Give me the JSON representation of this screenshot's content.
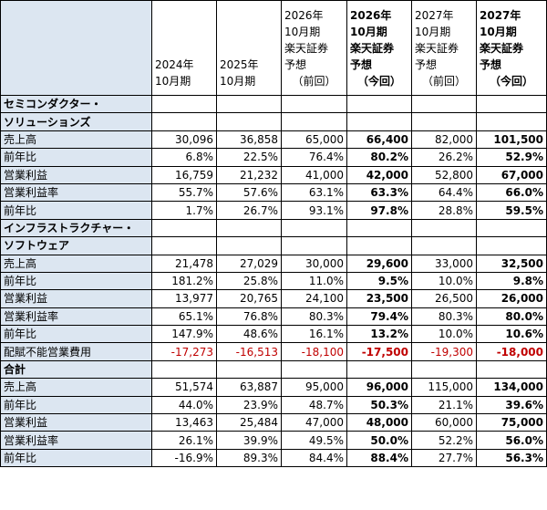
{
  "columns": [
    {
      "lines": [
        "2024年",
        "10月期"
      ],
      "bold": false,
      "paren": ""
    },
    {
      "lines": [
        "2025年",
        "10月期"
      ],
      "bold": false,
      "paren": ""
    },
    {
      "lines": [
        "2026年",
        "10月期",
        "楽天証券",
        "予想"
      ],
      "bold": false,
      "paren": "（前回）"
    },
    {
      "lines": [
        "2026年",
        "10月期",
        "楽天証券",
        "予想"
      ],
      "bold": true,
      "paren": "（今回）"
    },
    {
      "lines": [
        "2027年",
        "10月期",
        "楽天証券",
        "予想"
      ],
      "bold": false,
      "paren": "（前回）"
    },
    {
      "lines": [
        "2027年",
        "10月期",
        "楽天証券",
        "予想"
      ],
      "bold": true,
      "paren": "（今回）"
    }
  ],
  "sections": [
    {
      "name_lines": [
        "セミコンダクター・",
        "ソリューションズ"
      ],
      "groups": [
        [
          {
            "label": "売上高",
            "values": [
              "30,096",
              "36,858",
              "65,000",
              "66,400",
              "82,000",
              "101,500"
            ]
          },
          {
            "label": "前年比",
            "values": [
              "6.8%",
              "22.5%",
              "76.4%",
              "80.2%",
              "26.2%",
              "52.9%"
            ]
          }
        ],
        [
          {
            "label": "営業利益",
            "values": [
              "16,759",
              "21,232",
              "41,000",
              "42,000",
              "52,800",
              "67,000"
            ]
          },
          {
            "label": "営業利益率",
            "values": [
              "55.7%",
              "57.6%",
              "63.1%",
              "63.3%",
              "64.4%",
              "66.0%"
            ]
          },
          {
            "label": "前年比",
            "values": [
              "1.7%",
              "26.7%",
              "93.1%",
              "97.8%",
              "28.8%",
              "59.5%"
            ]
          }
        ]
      ]
    },
    {
      "name_lines": [
        "インフラストラクチャー・",
        "ソフトウェア"
      ],
      "groups": [
        [
          {
            "label": "売上高",
            "values": [
              "21,478",
              "27,029",
              "30,000",
              "29,600",
              "33,000",
              "32,500"
            ]
          },
          {
            "label": "前年比",
            "values": [
              "181.2%",
              "25.8%",
              "11.0%",
              "9.5%",
              "10.0%",
              "9.8%"
            ]
          }
        ],
        [
          {
            "label": "営業利益",
            "values": [
              "13,977",
              "20,765",
              "24,100",
              "23,500",
              "26,500",
              "26,000"
            ]
          },
          {
            "label": "営業利益率",
            "values": [
              "65.1%",
              "76.8%",
              "80.3%",
              "79.4%",
              "80.3%",
              "80.0%"
            ]
          },
          {
            "label": "前年比",
            "values": [
              "147.9%",
              "48.6%",
              "16.1%",
              "13.2%",
              "10.0%",
              "10.6%"
            ]
          }
        ]
      ]
    }
  ],
  "unallocated": {
    "label": "配賦不能営業費用",
    "values": [
      "-17,273",
      "-16,513",
      "-18,100",
      "-17,500",
      "-19,300",
      "-18,000"
    ]
  },
  "total": {
    "name_lines": [
      "合計"
    ],
    "groups": [
      [
        {
          "label": "売上高",
          "values": [
            "51,574",
            "63,887",
            "95,000",
            "96,000",
            "115,000",
            "134,000"
          ]
        },
        {
          "label": "前年比",
          "values": [
            "44.0%",
            "23.9%",
            "48.7%",
            "50.3%",
            "21.1%",
            "39.6%"
          ]
        }
      ],
      [
        {
          "label": "営業利益",
          "values": [
            "13,463",
            "25,484",
            "47,000",
            "48,000",
            "60,000",
            "75,000"
          ]
        },
        {
          "label": "営業利益率",
          "values": [
            "26.1%",
            "39.9%",
            "49.5%",
            "50.0%",
            "52.2%",
            "56.0%"
          ]
        },
        {
          "label": "前年比",
          "values": [
            "-16.9%",
            "89.3%",
            "84.4%",
            "88.4%",
            "27.7%",
            "56.3%"
          ]
        }
      ]
    ]
  },
  "styles": {
    "label_bg": "#dce6f1",
    "negative_color": "#c00000",
    "bold_columns": [
      3,
      5
    ]
  }
}
